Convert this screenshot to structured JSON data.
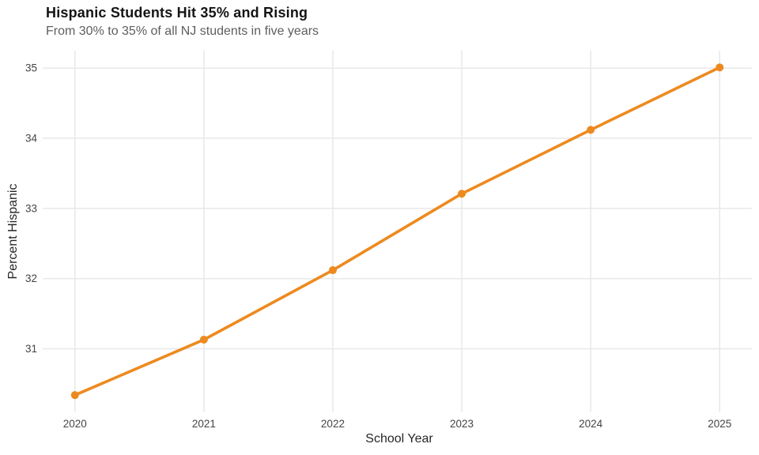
{
  "header": {
    "title": "Hispanic Students Hit 35% and Rising",
    "subtitle": "From 30% to 35% of all NJ students in five years"
  },
  "chart_data": {
    "type": "line",
    "title": "Hispanic Students Hit 35% and Rising",
    "subtitle": "From 30% to 35% of all NJ students in five years",
    "xlabel": "School Year",
    "ylabel": "Percent Hispanic",
    "x": [
      2020,
      2021,
      2022,
      2023,
      2024,
      2025
    ],
    "values": [
      30.34,
      31.13,
      32.12,
      33.21,
      34.12,
      35.01
    ],
    "x_tick_labels": [
      "2020",
      "2021",
      "2022",
      "2023",
      "2024",
      "2025"
    ],
    "y_ticks": [
      31,
      32,
      33,
      34,
      35
    ],
    "xlim": [
      2019.75,
      2025.25
    ],
    "ylim": [
      30.1,
      35.25
    ],
    "grid": true,
    "legend": "none",
    "marker": "circle"
  },
  "colors": {
    "line": "#ED8A1F",
    "marker": "#ED8A1F",
    "grid": "#E8E8E8",
    "tick_label": "#444444",
    "axis_title": "#262626",
    "title": "#141414",
    "subtitle": "#5E5E5E",
    "background": "#FFFFFF"
  }
}
